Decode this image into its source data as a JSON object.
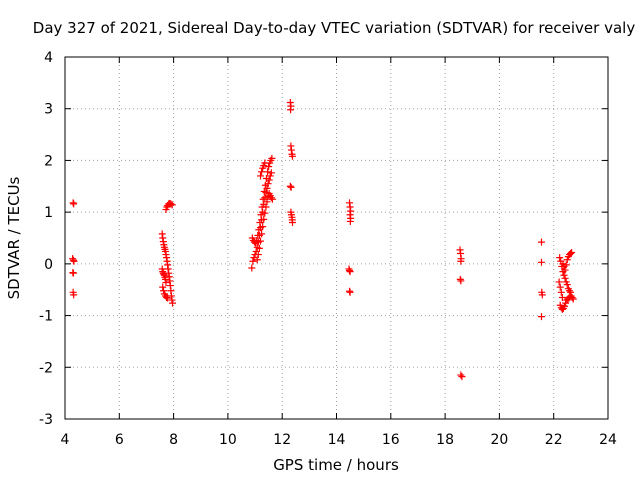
{
  "chart_data": {
    "type": "scatter",
    "title": "Day 327 of 2021, Sidereal Day-to-day VTEC variation (SDTVAR) for receiver valy",
    "xlabel": "GPS time / hours",
    "ylabel": "SDTVAR / TECUs",
    "xlim": [
      4,
      24
    ],
    "ylim": [
      -3,
      4
    ],
    "xticks": [
      4,
      6,
      8,
      10,
      12,
      14,
      16,
      18,
      20,
      22,
      24
    ],
    "yticks": [
      -3,
      -2,
      -1,
      0,
      1,
      2,
      3,
      4
    ],
    "grid": true,
    "marker": "plus",
    "color": "#ff0000",
    "series": [
      {
        "name": "SDTVAR",
        "points": [
          [
            4.3,
            1.18
          ],
          [
            4.32,
            1.16
          ],
          [
            4.28,
            0.1
          ],
          [
            4.31,
            0.07
          ],
          [
            4.33,
            0.05
          ],
          [
            4.29,
            -0.17
          ],
          [
            4.31,
            -0.18
          ],
          [
            4.3,
            -0.55
          ],
          [
            4.32,
            -0.6
          ],
          [
            7.58,
            0.58
          ],
          [
            7.6,
            0.5
          ],
          [
            7.62,
            0.43
          ],
          [
            7.64,
            0.37
          ],
          [
            7.66,
            0.32
          ],
          [
            7.68,
            0.28
          ],
          [
            7.7,
            0.24
          ],
          [
            7.72,
            0.18
          ],
          [
            7.74,
            0.12
          ],
          [
            7.76,
            0.05
          ],
          [
            7.78,
            -0.02
          ],
          [
            7.8,
            -0.1
          ],
          [
            7.82,
            -0.18
          ],
          [
            7.84,
            -0.25
          ],
          [
            7.86,
            -0.33
          ],
          [
            7.88,
            -0.42
          ],
          [
            7.9,
            -0.52
          ],
          [
            7.92,
            -0.62
          ],
          [
            7.94,
            -0.7
          ],
          [
            7.96,
            -0.76
          ],
          [
            7.58,
            -0.1
          ],
          [
            7.6,
            -0.15
          ],
          [
            7.62,
            -0.18
          ],
          [
            7.64,
            -0.2
          ],
          [
            7.66,
            -0.22
          ],
          [
            7.68,
            -0.26
          ],
          [
            7.7,
            -0.3
          ],
          [
            7.72,
            -0.36
          ],
          [
            7.6,
            -0.45
          ],
          [
            7.63,
            -0.52
          ],
          [
            7.66,
            -0.58
          ],
          [
            7.7,
            -0.62
          ],
          [
            7.74,
            -0.65
          ],
          [
            7.78,
            -0.66
          ],
          [
            7.72,
            1.05
          ],
          [
            7.75,
            1.1
          ],
          [
            7.78,
            1.13
          ],
          [
            7.82,
            1.16
          ],
          [
            7.86,
            1.17
          ],
          [
            7.9,
            1.16
          ],
          [
            7.95,
            1.14
          ],
          [
            10.88,
            -0.08
          ],
          [
            10.92,
            0.05
          ],
          [
            10.96,
            0.12
          ],
          [
            11.0,
            0.18
          ],
          [
            11.04,
            0.24
          ],
          [
            11.08,
            0.32
          ],
          [
            11.12,
            0.42
          ],
          [
            11.16,
            0.55
          ],
          [
            11.2,
            0.7
          ],
          [
            11.24,
            0.85
          ],
          [
            11.28,
            1.0
          ],
          [
            11.32,
            1.15
          ],
          [
            11.36,
            1.28
          ],
          [
            11.4,
            1.38
          ],
          [
            11.44,
            1.46
          ],
          [
            11.48,
            1.55
          ],
          [
            11.52,
            1.62
          ],
          [
            11.56,
            1.7
          ],
          [
            11.6,
            1.76
          ],
          [
            10.9,
            0.5
          ],
          [
            10.94,
            0.45
          ],
          [
            10.98,
            0.42
          ],
          [
            11.02,
            0.4
          ],
          [
            11.06,
            0.45
          ],
          [
            11.1,
            0.55
          ],
          [
            11.14,
            0.66
          ],
          [
            11.18,
            0.8
          ],
          [
            11.22,
            0.95
          ],
          [
            11.26,
            1.1
          ],
          [
            11.3,
            1.25
          ],
          [
            11.34,
            1.4
          ],
          [
            11.38,
            1.52
          ],
          [
            11.42,
            1.65
          ],
          [
            11.46,
            1.78
          ],
          [
            11.5,
            1.88
          ],
          [
            11.54,
            1.95
          ],
          [
            11.58,
            2.0
          ],
          [
            11.62,
            2.04
          ],
          [
            11.08,
            0.08
          ],
          [
            11.12,
            0.18
          ],
          [
            11.16,
            0.3
          ],
          [
            11.2,
            0.44
          ],
          [
            11.24,
            0.58
          ],
          [
            11.28,
            0.72
          ],
          [
            11.32,
            0.86
          ],
          [
            11.36,
            0.98
          ],
          [
            11.4,
            1.1
          ],
          [
            11.44,
            1.2
          ],
          [
            11.48,
            1.3
          ],
          [
            11.52,
            1.36
          ],
          [
            11.56,
            1.32
          ],
          [
            11.6,
            1.28
          ],
          [
            11.64,
            1.25
          ],
          [
            11.2,
            1.7
          ],
          [
            11.24,
            1.78
          ],
          [
            11.28,
            1.85
          ],
          [
            11.32,
            1.9
          ],
          [
            11.36,
            1.95
          ],
          [
            12.3,
            3.12
          ],
          [
            12.32,
            3.05
          ],
          [
            12.31,
            2.98
          ],
          [
            12.32,
            2.28
          ],
          [
            12.34,
            2.2
          ],
          [
            12.36,
            2.12
          ],
          [
            12.38,
            2.08
          ],
          [
            12.3,
            1.5
          ],
          [
            12.33,
            1.48
          ],
          [
            12.32,
            1.0
          ],
          [
            12.34,
            0.95
          ],
          [
            12.36,
            0.9
          ],
          [
            12.37,
            0.85
          ],
          [
            12.38,
            0.8
          ],
          [
            14.48,
            1.18
          ],
          [
            14.5,
            1.1
          ],
          [
            14.52,
            1.02
          ],
          [
            14.5,
            0.95
          ],
          [
            14.52,
            0.88
          ],
          [
            14.51,
            0.82
          ],
          [
            14.46,
            -0.1
          ],
          [
            14.48,
            -0.13
          ],
          [
            14.5,
            -0.15
          ],
          [
            14.48,
            -0.53
          ],
          [
            14.5,
            -0.55
          ],
          [
            18.55,
            0.27
          ],
          [
            18.57,
            0.2
          ],
          [
            18.59,
            0.1
          ],
          [
            18.58,
            0.05
          ],
          [
            18.56,
            -0.3
          ],
          [
            18.58,
            -0.33
          ],
          [
            18.58,
            -2.15
          ],
          [
            18.62,
            -2.18
          ],
          [
            21.55,
            0.42
          ],
          [
            21.55,
            0.03
          ],
          [
            21.56,
            -0.55
          ],
          [
            21.58,
            -0.6
          ],
          [
            21.55,
            -1.02
          ],
          [
            22.22,
            0.12
          ],
          [
            22.26,
            0.05
          ],
          [
            22.3,
            -0.05
          ],
          [
            22.34,
            -0.15
          ],
          [
            22.38,
            -0.22
          ],
          [
            22.42,
            -0.12
          ],
          [
            22.46,
            -0.02
          ],
          [
            22.5,
            0.08
          ],
          [
            22.54,
            0.14
          ],
          [
            22.58,
            0.18
          ],
          [
            22.62,
            0.2
          ],
          [
            22.66,
            0.22
          ],
          [
            22.2,
            -0.35
          ],
          [
            22.24,
            -0.45
          ],
          [
            22.28,
            -0.55
          ],
          [
            22.32,
            -0.65
          ],
          [
            22.24,
            -0.8
          ],
          [
            22.28,
            -0.85
          ],
          [
            22.32,
            -0.88
          ],
          [
            22.36,
            -0.86
          ],
          [
            22.4,
            -0.82
          ],
          [
            22.44,
            -0.76
          ],
          [
            22.48,
            -0.7
          ],
          [
            22.52,
            -0.68
          ],
          [
            22.56,
            -0.66
          ],
          [
            22.6,
            -0.64
          ],
          [
            22.64,
            -0.62
          ],
          [
            22.68,
            -0.65
          ],
          [
            22.72,
            -0.68
          ],
          [
            22.34,
            0.0
          ],
          [
            22.38,
            -0.05
          ],
          [
            22.42,
            -0.28
          ],
          [
            22.46,
            -0.35
          ],
          [
            22.5,
            -0.4
          ],
          [
            22.54,
            -0.48
          ],
          [
            22.58,
            -0.52
          ],
          [
            22.62,
            -0.55
          ]
        ]
      }
    ]
  }
}
